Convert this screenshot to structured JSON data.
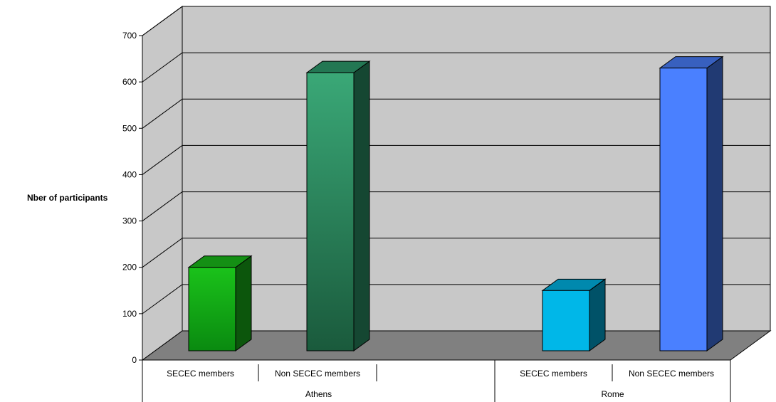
{
  "chart_data": {
    "type": "bar",
    "ylabel": "Nber of participants",
    "ylim": [
      0,
      700
    ],
    "yticks": [
      0,
      100,
      200,
      300,
      400,
      500,
      600,
      700
    ],
    "grid": true,
    "groups": [
      {
        "label": "Athens",
        "bars": [
          {
            "category": "SECEC members",
            "value": 180,
            "color": "#1abf1a"
          },
          {
            "category": "Non SECEC members",
            "value": 600,
            "color": "#2f9e6e"
          }
        ]
      },
      {
        "label": "Rome",
        "bars": [
          {
            "category": "SECEC members",
            "value": 130,
            "color": "#00b7e8"
          },
          {
            "category": "Non SECEC members",
            "value": 610,
            "color": "#4a80ff"
          }
        ]
      }
    ],
    "colors": {
      "wall": "#c8c8c8",
      "floor": "#808080",
      "gridline": "#000000"
    }
  }
}
